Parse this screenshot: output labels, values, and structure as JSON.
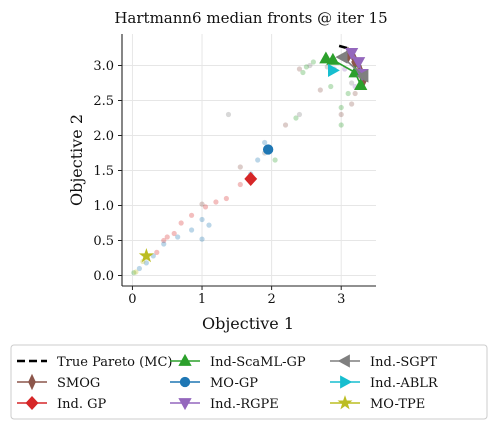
{
  "chart_data": {
    "type": "scatter",
    "title": "Hartmann6 median fronts @ iter 15",
    "xlabel": "Objective 1",
    "ylabel": "Objective 2",
    "xlim": [
      -0.15,
      3.5
    ],
    "ylim": [
      -0.15,
      3.45
    ],
    "xticks": [
      0,
      1,
      2,
      3
    ],
    "yticks": [
      0.0,
      0.5,
      1.0,
      1.5,
      2.0,
      2.5,
      3.0
    ],
    "ytick_labels": [
      "0.0",
      "0.5",
      "1.0",
      "1.5",
      "2.0",
      "2.5",
      "3.0"
    ],
    "grid": true,
    "legend_position": "bottom",
    "true_pareto": {
      "name": "True Pareto (MC)",
      "color": "#000000",
      "points": [
        [
          2.97,
          3.28
        ],
        [
          3.08,
          3.25
        ],
        [
          3.18,
          3.15
        ],
        [
          3.27,
          3.0
        ],
        [
          3.33,
          2.82
        ]
      ]
    },
    "series": [
      {
        "name": "SMOG",
        "color": "#8c564b",
        "marker": "thin_diamond",
        "front": [
          [
            3.1,
            3.15
          ],
          [
            3.2,
            3.05
          ],
          [
            3.27,
            2.92
          ],
          [
            3.33,
            2.82
          ]
        ]
      },
      {
        "name": "Ind. GP",
        "color": "#d62728",
        "marker": "diamond",
        "front": [
          [
            1.7,
            1.38
          ]
        ]
      },
      {
        "name": "Ind-ScaML-GP",
        "color": "#2ca02c",
        "marker": "triangle_up",
        "front": [
          [
            2.78,
            3.1
          ],
          [
            2.88,
            3.08
          ],
          [
            3.2,
            2.9
          ],
          [
            3.28,
            2.72
          ]
        ]
      },
      {
        "name": "MO-GP",
        "color": "#1f77b4",
        "marker": "circle",
        "front": [
          [
            1.95,
            1.8
          ]
        ]
      },
      {
        "name": "Ind.-RGPE",
        "color": "#9467bd",
        "marker": "triangle_down",
        "front": [
          [
            3.15,
            3.18
          ],
          [
            3.25,
            3.05
          ],
          [
            3.3,
            2.88
          ]
        ]
      },
      {
        "name": "Ind.-SGPT",
        "color": "#7f7f7f",
        "marker": "triangle_left",
        "front": [
          [
            3.02,
            3.12
          ],
          [
            3.32,
            2.85
          ]
        ]
      },
      {
        "name": "Ind.-ABLR",
        "color": "#17becf",
        "marker": "triangle_right",
        "front": [
          [
            2.88,
            2.93
          ]
        ]
      },
      {
        "name": "MO-TPE",
        "color": "#bcbd22",
        "marker": "star",
        "front": [
          [
            0.2,
            0.28
          ]
        ]
      }
    ],
    "background_points": [
      {
        "color": "#d62728",
        "points": [
          [
            0.35,
            0.33
          ],
          [
            0.45,
            0.5
          ],
          [
            0.6,
            0.6
          ],
          [
            0.85,
            0.86
          ],
          [
            1.05,
            0.98
          ],
          [
            1.2,
            1.05
          ],
          [
            1.35,
            1.1
          ],
          [
            1.55,
            1.3
          ],
          [
            0.5,
            0.55
          ],
          [
            0.7,
            0.75
          ]
        ]
      },
      {
        "color": "#1f77b4",
        "points": [
          [
            0.1,
            0.1
          ],
          [
            0.2,
            0.18
          ],
          [
            0.45,
            0.45
          ],
          [
            0.65,
            0.55
          ],
          [
            0.85,
            0.65
          ],
          [
            1.0,
            0.52
          ],
          [
            1.0,
            0.8
          ],
          [
            1.1,
            0.72
          ],
          [
            1.7,
            1.45
          ],
          [
            1.8,
            1.65
          ],
          [
            1.9,
            1.9
          ],
          [
            0.3,
            0.28
          ]
        ]
      },
      {
        "color": "#2ca02c",
        "points": [
          [
            2.35,
            2.25
          ],
          [
            2.45,
            2.9
          ],
          [
            2.5,
            2.98
          ],
          [
            2.6,
            3.05
          ],
          [
            2.85,
            2.7
          ],
          [
            3.0,
            2.4
          ],
          [
            3.1,
            2.6
          ],
          [
            2.05,
            1.65
          ],
          [
            3.0,
            2.15
          ],
          [
            0.02,
            0.04
          ]
        ]
      },
      {
        "color": "#8c564b",
        "points": [
          [
            2.2,
            2.15
          ],
          [
            2.4,
            2.95
          ],
          [
            2.7,
            2.65
          ],
          [
            3.15,
            2.45
          ],
          [
            3.2,
            2.6
          ],
          [
            3.0,
            2.3
          ],
          [
            1.0,
            1.02
          ],
          [
            1.55,
            1.55
          ]
        ]
      },
      {
        "color": "#7f7f7f",
        "points": [
          [
            1.38,
            2.3
          ],
          [
            2.4,
            2.3
          ],
          [
            2.55,
            3.0
          ],
          [
            2.8,
            2.98
          ],
          [
            3.15,
            2.75
          ],
          [
            1.9,
            1.75
          ]
        ]
      },
      {
        "color": "#9467bd",
        "points": [
          [
            2.9,
            2.95
          ],
          [
            3.05,
            2.95
          ],
          [
            3.2,
            2.7
          ]
        ]
      },
      {
        "color": "#bcbd22",
        "points": [
          [
            0.05,
            0.05
          ],
          [
            0.15,
            0.2
          ]
        ]
      }
    ]
  }
}
